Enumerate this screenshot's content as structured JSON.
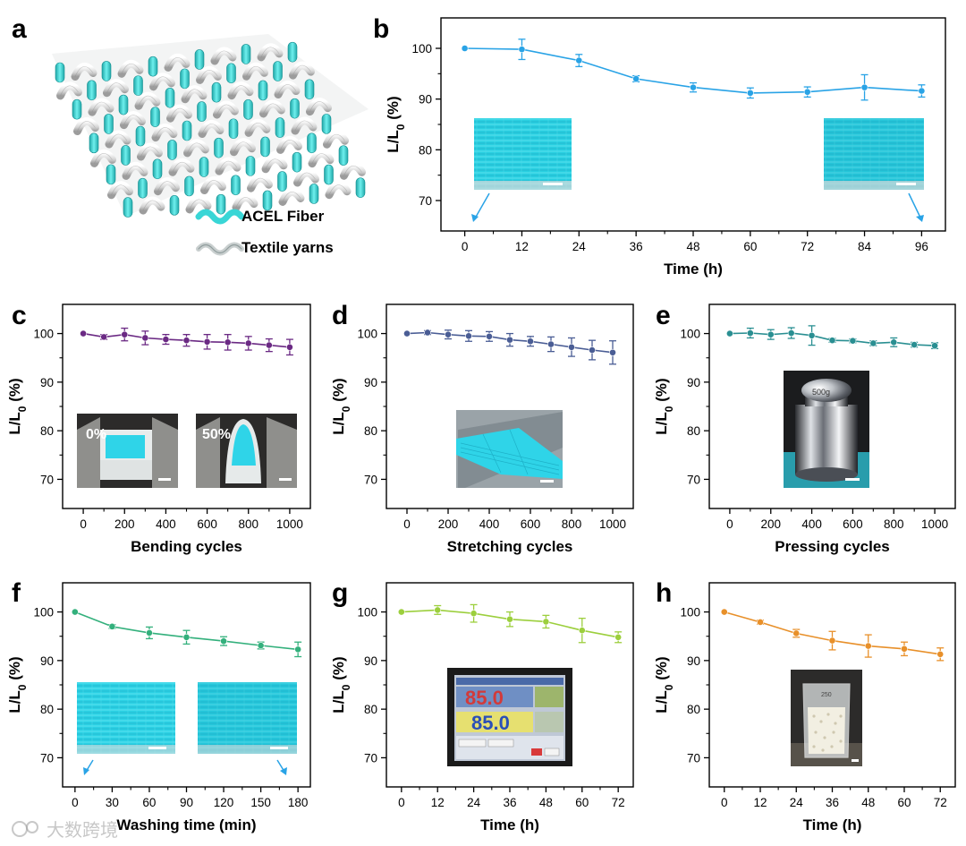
{
  "panel_letters": [
    "a",
    "b",
    "c",
    "d",
    "e",
    "f",
    "g",
    "h"
  ],
  "legend": {
    "fiber_label": "ACEL Fiber",
    "yarn_label": "Textile yarns"
  },
  "insets": {
    "c_left": "0%",
    "c_right": "50%",
    "e_weight": "500g",
    "g_top_value": "85.0",
    "g_bottom_value": "85.0",
    "h_beaker": "250"
  },
  "watermark": "大数跨境",
  "colors": {
    "b": "#29a3e6",
    "c": "#6b2a84",
    "d": "#4a5d95",
    "e": "#2a8f92",
    "f": "#33b07c",
    "g": "#9ccf3d",
    "h": "#e8902a",
    "fiber": "#39d6d6",
    "inset_cyan": "#2fd4e8"
  },
  "chart_data": [
    {
      "id": "b",
      "type": "line",
      "xlabel": "Time (h)",
      "ylabel": "L/L0 (%)",
      "xlim": [
        -5,
        101
      ],
      "ylim": [
        64,
        106
      ],
      "xticks": [
        0,
        12,
        24,
        36,
        48,
        60,
        72,
        84,
        96
      ],
      "yticks": [
        70,
        80,
        90,
        100
      ],
      "x": [
        0,
        12,
        24,
        36,
        48,
        60,
        72,
        84,
        96
      ],
      "series": [
        {
          "values": [
            100,
            99.8,
            97.6,
            94.0,
            92.3,
            91.2,
            91.4,
            92.3,
            91.6
          ],
          "errors": [
            0,
            2.0,
            1.2,
            0.6,
            0.9,
            1.0,
            1.0,
            2.5,
            1.2
          ]
        }
      ]
    },
    {
      "id": "c",
      "type": "line",
      "xlabel": "Bending cycles",
      "ylabel": "L/L0 (%)",
      "xlim": [
        -100,
        1100
      ],
      "ylim": [
        64,
        106
      ],
      "xticks": [
        0,
        200,
        400,
        600,
        800,
        1000
      ],
      "yticks": [
        70,
        80,
        90,
        100
      ],
      "x": [
        0,
        100,
        200,
        300,
        400,
        500,
        600,
        700,
        800,
        900,
        1000
      ],
      "series": [
        {
          "values": [
            100,
            99.3,
            99.8,
            99.1,
            98.8,
            98.6,
            98.3,
            98.2,
            98.0,
            97.6,
            97.2
          ],
          "errors": [
            0,
            0.5,
            1.3,
            1.4,
            1.0,
            1.2,
            1.5,
            1.6,
            1.4,
            1.3,
            1.6
          ]
        }
      ]
    },
    {
      "id": "d",
      "type": "line",
      "xlabel": "Stretching cycles",
      "ylabel": "L/L0 (%)",
      "xlim": [
        -100,
        1100
      ],
      "ylim": [
        64,
        106
      ],
      "xticks": [
        0,
        200,
        400,
        600,
        800,
        1000
      ],
      "yticks": [
        70,
        80,
        90,
        100
      ],
      "x": [
        0,
        100,
        200,
        300,
        400,
        500,
        600,
        700,
        800,
        900,
        1000
      ],
      "series": [
        {
          "values": [
            100,
            100.2,
            99.8,
            99.5,
            99.4,
            98.7,
            98.4,
            97.8,
            97.2,
            96.6,
            96.1
          ],
          "errors": [
            0,
            0.4,
            0.9,
            1.1,
            1.0,
            1.3,
            1.0,
            1.5,
            1.9,
            2.0,
            2.4
          ]
        }
      ]
    },
    {
      "id": "e",
      "type": "line",
      "xlabel": "Pressing cycles",
      "ylabel": "L/L0 (%)",
      "xlim": [
        -100,
        1100
      ],
      "ylim": [
        64,
        106
      ],
      "xticks": [
        0,
        200,
        400,
        600,
        800,
        1000
      ],
      "yticks": [
        70,
        80,
        90,
        100
      ],
      "x": [
        0,
        100,
        200,
        300,
        400,
        500,
        600,
        700,
        800,
        900,
        1000
      ],
      "series": [
        {
          "values": [
            100,
            100.1,
            99.8,
            100.1,
            99.6,
            98.6,
            98.5,
            98.0,
            98.2,
            97.7,
            97.5
          ],
          "errors": [
            0,
            1.0,
            1.0,
            1.1,
            2.0,
            0.4,
            0.4,
            0.5,
            0.9,
            0.5,
            0.6
          ]
        }
      ]
    },
    {
      "id": "f",
      "type": "line",
      "xlabel": "Washing time (min)",
      "ylabel": "L/L0 (%)",
      "xlim": [
        -10,
        190
      ],
      "ylim": [
        64,
        106
      ],
      "xticks": [
        0,
        30,
        60,
        90,
        120,
        150,
        180
      ],
      "yticks": [
        70,
        80,
        90,
        100
      ],
      "x": [
        0,
        30,
        60,
        90,
        120,
        150,
        180
      ],
      "series": [
        {
          "values": [
            100,
            97.0,
            95.7,
            94.8,
            94.0,
            93.1,
            92.3
          ],
          "errors": [
            0,
            0.4,
            1.2,
            1.4,
            0.9,
            0.7,
            1.5
          ]
        }
      ]
    },
    {
      "id": "g",
      "type": "line",
      "xlabel": "Time (h)",
      "ylabel": "L/L0 (%)",
      "xlim": [
        -5,
        77
      ],
      "ylim": [
        64,
        106
      ],
      "xticks": [
        0,
        12,
        24,
        36,
        48,
        60,
        72
      ],
      "yticks": [
        70,
        80,
        90,
        100
      ],
      "x": [
        0,
        12,
        24,
        36,
        48,
        60,
        72
      ],
      "series": [
        {
          "values": [
            100,
            100.4,
            99.7,
            98.5,
            98.0,
            96.2,
            94.8
          ],
          "errors": [
            0,
            0.9,
            1.8,
            1.5,
            1.3,
            2.5,
            1.1
          ]
        }
      ]
    },
    {
      "id": "h",
      "type": "line",
      "xlabel": "Time (h)",
      "ylabel": "L/L0 (%)",
      "xlim": [
        -5,
        77
      ],
      "ylim": [
        64,
        106
      ],
      "xticks": [
        0,
        12,
        24,
        36,
        48,
        60,
        72
      ],
      "yticks": [
        70,
        80,
        90,
        100
      ],
      "x": [
        0,
        12,
        24,
        36,
        48,
        60,
        72
      ],
      "series": [
        {
          "values": [
            100,
            97.9,
            95.6,
            94.1,
            93.0,
            92.4,
            91.3
          ],
          "errors": [
            0,
            0.4,
            0.8,
            1.9,
            2.3,
            1.4,
            1.3
          ]
        }
      ]
    }
  ]
}
